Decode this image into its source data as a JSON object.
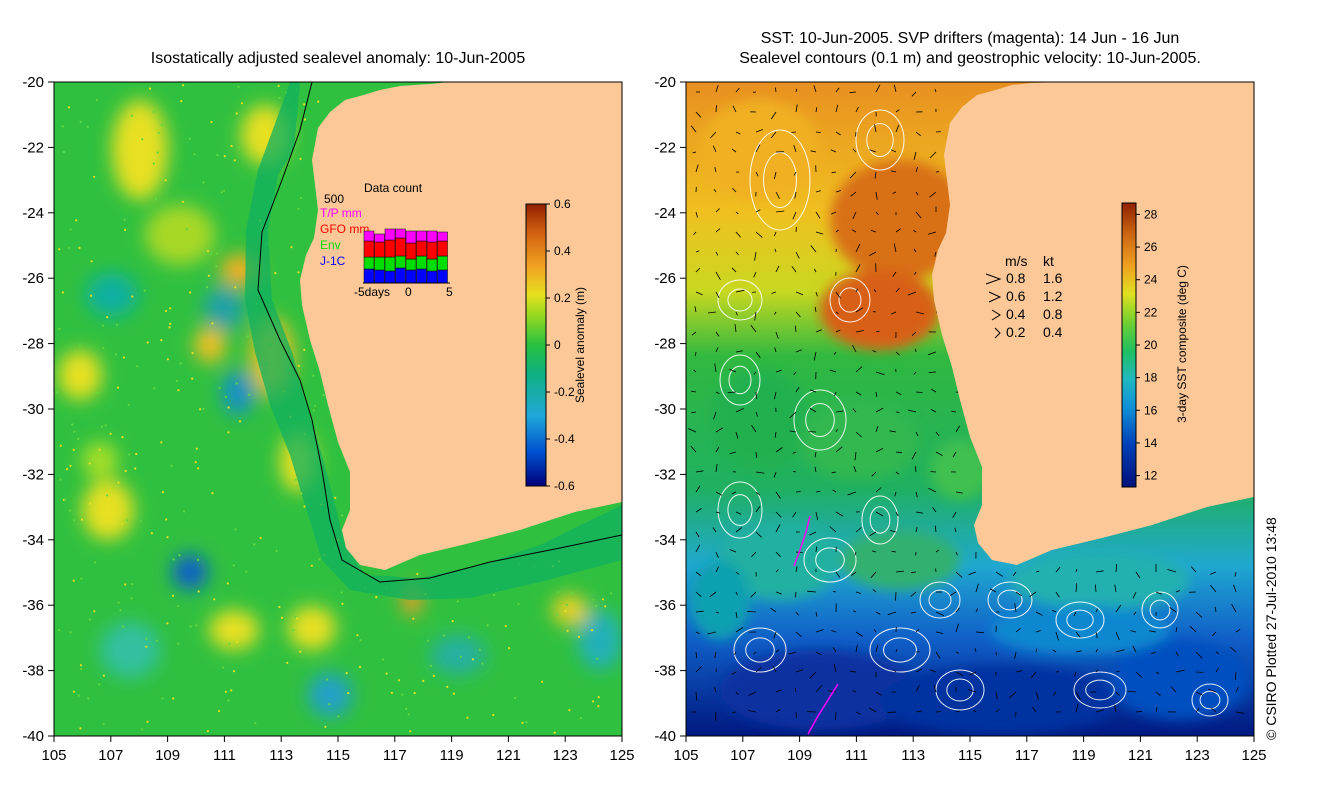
{
  "left_map": {
    "title": "Isostatically adjusted sealevel anomaly: 10-Jun-2005",
    "lon_ticks": [
      "105",
      "107",
      "109",
      "111",
      "113",
      "115",
      "117",
      "119",
      "121",
      "123",
      "125"
    ],
    "lat_ticks": [
      "-20",
      "-22",
      "-24",
      "-26",
      "-28",
      "-30",
      "-32",
      "-34",
      "-36",
      "-38",
      "-40"
    ],
    "lon_range": [
      105,
      125
    ],
    "lat_range": [
      -20,
      -40
    ],
    "colorbar": {
      "label": "Sealevel anomaly (m)",
      "ticks": [
        "0.6",
        "0.4",
        "0.2",
        "0",
        "-0.2",
        "-0.4",
        "-0.6"
      ],
      "range": [
        -0.6,
        0.6
      ]
    },
    "data_count": {
      "title": "Data count",
      "ymax_label": "500",
      "x_labels": [
        "-5days",
        "0",
        "5"
      ],
      "legend": [
        {
          "label": "T/P mm",
          "color": "#ff00ff"
        },
        {
          "label": "GFO mm",
          "color": "#ff0000"
        },
        {
          "label": "Env",
          "color": "#00dd00"
        },
        {
          "label": "J-1C",
          "color": "#0000ff"
        }
      ]
    }
  },
  "right_map": {
    "title_line1": "SST: 10-Jun-2005. SVP drifters (magenta): 14 Jun - 16 Jun",
    "title_line2": "Sealevel contours (0.1 m) and geostrophic velocity: 10-Jun-2005.",
    "lon_ticks": [
      "105",
      "107",
      "109",
      "111",
      "113",
      "115",
      "117",
      "119",
      "121",
      "123",
      "125"
    ],
    "lat_ticks": [
      "-20",
      "-22",
      "-24",
      "-26",
      "-28",
      "-30",
      "-32",
      "-34",
      "-36",
      "-38",
      "-40"
    ],
    "colorbar": {
      "label": "3-day SST composite (deg C)",
      "ticks": [
        "28",
        "26",
        "24",
        "22",
        "20",
        "18",
        "16",
        "14",
        "12"
      ],
      "range": [
        11,
        28
      ]
    },
    "velocity_key": {
      "header_ms": "m/s",
      "header_kt": "kt",
      "rows": [
        {
          "ms": "0.8",
          "kt": "1.6"
        },
        {
          "ms": "0.6",
          "kt": "1.2"
        },
        {
          "ms": "0.4",
          "kt": "0.8"
        },
        {
          "ms": "0.2",
          "kt": "0.4"
        }
      ]
    }
  },
  "credit": "© CSIRO Plotted 27-Jul-2010 13:48",
  "colors": {
    "land": "#fcc898",
    "sla_scale": [
      "#00007a",
      "#0050d0",
      "#20a8d8",
      "#10b080",
      "#28c040",
      "#70d028",
      "#c8e020",
      "#f0d010",
      "#f0a020",
      "#d86010",
      "#a02800"
    ],
    "sst_scale": [
      "#00107a",
      "#0040b8",
      "#1080d0",
      "#20b0d0",
      "#10c070",
      "#30c040",
      "#90d020",
      "#e0d010",
      "#f0a020",
      "#d06010",
      "#902000"
    ]
  }
}
